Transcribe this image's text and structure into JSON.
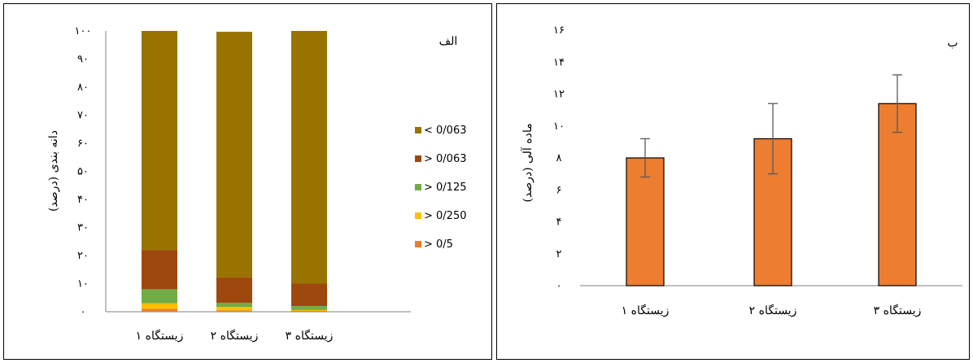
{
  "chart_data": [
    {
      "type": "bar",
      "stacked": true,
      "panel_label": "الف",
      "ylabel": "دانه بندی (درصد)",
      "categories": [
        "زیستگاه ۱",
        "زیستگاه ۲",
        "زیستگاه ۳"
      ],
      "ylim": [
        0,
        100
      ],
      "y_ticks": [
        "۰",
        "۱۰",
        "۲۰",
        "۳۰",
        "۴۰",
        "۵۰",
        "۶۰",
        "۷۰",
        "۸۰",
        "۹۰",
        "۱۰۰"
      ],
      "grid": false,
      "legend_position": "right",
      "series": [
        {
          "name": "> 0/5",
          "color": "#ED7D31",
          "values": [
            1,
            0.5,
            0.3
          ]
        },
        {
          "name": "> 0/250",
          "color": "#FFC000",
          "values": [
            2,
            1.2,
            0.3
          ]
        },
        {
          "name": "> 0/125",
          "color": "#70AD47",
          "values": [
            5,
            1.5,
            1.4
          ]
        },
        {
          "name": "> 0/063",
          "color": "#9E480E",
          "values": [
            14,
            9,
            8
          ]
        },
        {
          "name": "< 0/063",
          "color": "#997300",
          "values": [
            78,
            87.5,
            90
          ]
        }
      ]
    },
    {
      "type": "bar",
      "panel_label": "ب",
      "ylabel": "ماده آلی (درصد)",
      "categories": [
        "زیستگاه ۱",
        "زیستگاه ۲",
        "زیستگاه ۳"
      ],
      "ylim": [
        0,
        16
      ],
      "y_ticks": [
        "۰",
        "۲",
        "۴",
        "۶",
        "۸",
        "۱۰",
        "۱۲",
        "۱۴",
        "۱۶"
      ],
      "grid": false,
      "series": [
        {
          "color": "#ED7D31",
          "values": [
            8,
            9.2,
            11.4
          ],
          "error": [
            1.2,
            2.2,
            1.8
          ]
        }
      ]
    }
  ]
}
